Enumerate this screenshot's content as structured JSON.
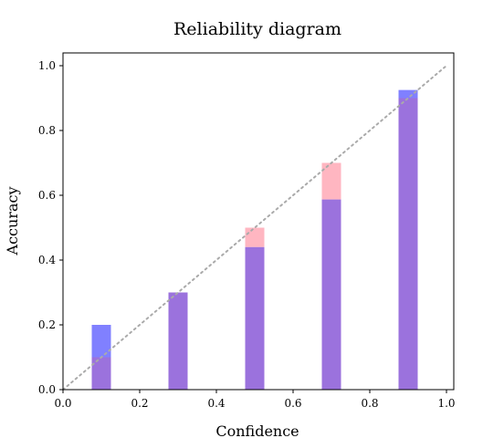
{
  "chart_data": {
    "type": "bar",
    "title": "Reliability diagram",
    "xlabel": "Confidence",
    "ylabel": "Accuracy",
    "xlim": [
      0.0,
      1.0
    ],
    "ylim": [
      0.0,
      1.0
    ],
    "xticks": [
      "0.0",
      "0.2",
      "0.4",
      "0.6",
      "0.8",
      "1.0"
    ],
    "yticks": [
      "0.0",
      "0.2",
      "0.4",
      "0.6",
      "0.8",
      "1.0"
    ],
    "bin_centers": [
      0.1,
      0.3,
      0.5,
      0.7,
      0.9
    ],
    "bar_width": 0.05,
    "series": [
      {
        "color": "#ffb6c1",
        "values": [
          0.1,
          0.3,
          0.5,
          0.7,
          0.9
        ]
      },
      {
        "color": "#8080ff",
        "values": [
          0.2,
          0.3,
          0.44,
          0.587,
          0.925
        ]
      }
    ],
    "overlap_color": "#9b72dd",
    "diagonal": {
      "from": [
        0,
        0
      ],
      "to": [
        1,
        1
      ],
      "style": "dotted",
      "color": "#aaaaaa"
    },
    "grid": false,
    "legend": "none"
  }
}
